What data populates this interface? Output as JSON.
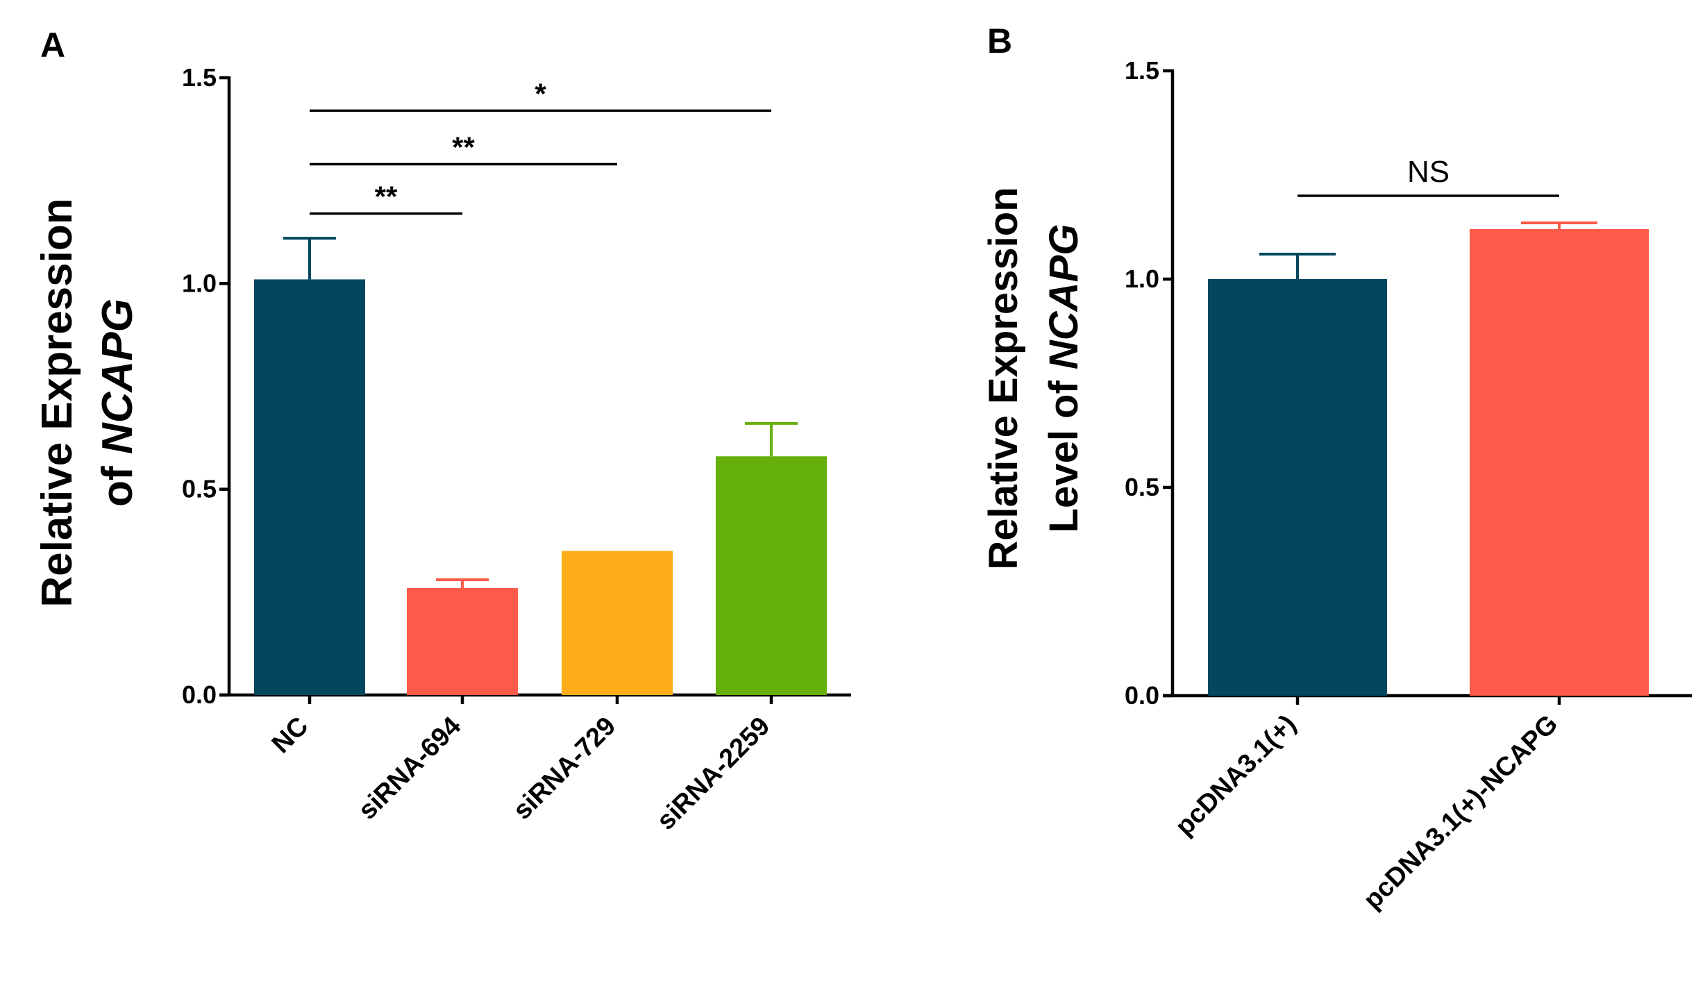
{
  "chart_data": [
    {
      "panel": "A",
      "type": "bar",
      "ylabel_line1": "Relative Expression",
      "ylabel_line2_prefix": "of",
      "ylabel_line2_gene": "NCAPG",
      "ylim": [
        0,
        1.5
      ],
      "yticks": [
        0.0,
        0.5,
        1.0,
        1.5
      ],
      "ytick_labels": [
        "0.0",
        "0.5",
        "1.0",
        "1.5"
      ],
      "categories": [
        "NC",
        "siRNA-694",
        "siRNA-729",
        "siRNA-2259"
      ],
      "values": [
        1.01,
        0.26,
        0.35,
        0.58
      ],
      "errors": [
        0.1,
        0.02,
        0.0,
        0.08
      ],
      "colors": [
        "#03475F",
        "#FD5A4A",
        "#FDAD17",
        "#66B00C"
      ],
      "significance": [
        {
          "from": "NC",
          "to": "siRNA-694",
          "label": "**",
          "y": 1.17
        },
        {
          "from": "NC",
          "to": "siRNA-729",
          "label": "**",
          "y": 1.29
        },
        {
          "from": "NC",
          "to": "siRNA-2259",
          "label": "*",
          "y": 1.42
        }
      ]
    },
    {
      "panel": "B",
      "type": "bar",
      "ylabel_line1": "Relative Expression",
      "ylabel_line2_prefix": "Level of",
      "ylabel_line2_gene": "NCAPG",
      "ylim": [
        0,
        1.5
      ],
      "yticks": [
        0.0,
        0.5,
        1.0,
        1.5
      ],
      "ytick_labels": [
        "0.0",
        "0.5",
        "1.0",
        "1.5"
      ],
      "categories": [
        "pcDNA3.1(+)",
        "pcDNA3.1(+)-NCAPG"
      ],
      "values": [
        1.0,
        1.12
      ],
      "errors": [
        0.06,
        0.015
      ],
      "colors": [
        "#03475F",
        "#FD5A4A"
      ],
      "significance": [
        {
          "from": "pcDNA3.1(+)",
          "to": "pcDNA3.1(+)-NCAPG",
          "label": "NS",
          "y": 1.2
        }
      ]
    }
  ]
}
